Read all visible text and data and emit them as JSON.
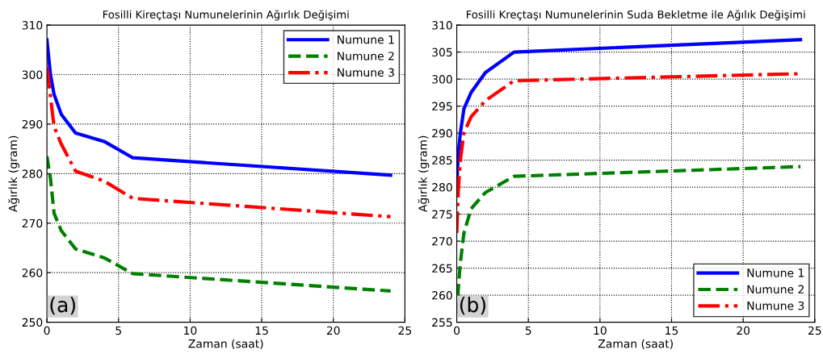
{
  "chart_data": [
    {
      "type": "line",
      "title": "Fosilli Kireçtaşı Numunelerinin Ağırlık Değişimi",
      "xlabel": "Zaman (saat)",
      "ylabel": "Ağırlık (gram)",
      "xlim": [
        0,
        25
      ],
      "xticks": [
        0,
        5,
        10,
        15,
        20,
        25
      ],
      "ylim": [
        250,
        310
      ],
      "yticks": [
        250,
        260,
        270,
        280,
        290,
        300,
        310
      ],
      "grid": true,
      "legend": "top right",
      "annotations": [
        "(a)"
      ],
      "x": [
        0,
        0.25,
        0.5,
        1,
        2,
        4,
        6,
        24
      ],
      "series": [
        {
          "name": "Numune 1",
          "color": "#0000ff",
          "line_style": "solid",
          "values": [
            307,
            300,
            296,
            292,
            288.2,
            286.5,
            283.2,
            279.7
          ]
        },
        {
          "name": "Numune 2",
          "color": "#008000",
          "line_style": "dashed",
          "values": [
            283.5,
            279,
            272,
            268.5,
            264.8,
            263,
            259.8,
            256.3
          ]
        },
        {
          "name": "Numune 3",
          "color": "#ff0000",
          "line_style": "dashdot",
          "values": [
            301.5,
            295.5,
            289.5,
            286,
            280.5,
            278.5,
            275,
            271.3
          ]
        }
      ]
    },
    {
      "type": "line",
      "title": "Fosilli Kreçtaşı Numunelerinin Suda Bekletme ile Ağılık Değişimi",
      "xlabel": "Zaman (saat)",
      "ylabel": "Ağırlık (gram)",
      "xlim": [
        0,
        25
      ],
      "xticks": [
        0,
        5,
        10,
        15,
        20,
        25
      ],
      "ylim": [
        255,
        310
      ],
      "yticks": [
        255,
        260,
        265,
        270,
        275,
        280,
        285,
        290,
        295,
        300,
        305,
        310
      ],
      "grid": true,
      "legend": "bottom right",
      "annotations": [
        "(b)"
      ],
      "x": [
        0,
        0.1,
        0.25,
        0.5,
        1,
        2,
        4,
        24
      ],
      "series": [
        {
          "name": "Numune 1",
          "color": "#0000ff",
          "line_style": "solid",
          "values": [
            280,
            286,
            290,
            294.5,
            297.5,
            301.2,
            305,
            307.3
          ]
        },
        {
          "name": "Numune 2",
          "color": "#008000",
          "line_style": "dashed",
          "values": [
            256.5,
            261,
            266,
            271.5,
            276,
            279,
            282,
            283.8
          ]
        },
        {
          "name": "Numune 3",
          "color": "#ff0000",
          "line_style": "dashdot",
          "values": [
            271.5,
            279,
            285,
            290,
            293,
            296,
            299.7,
            301
          ]
        }
      ]
    }
  ]
}
